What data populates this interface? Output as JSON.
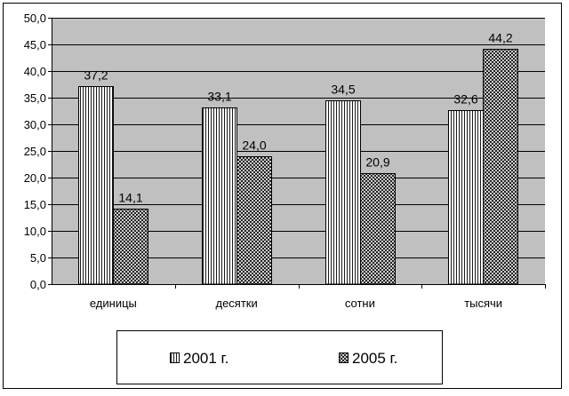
{
  "chart_data": {
    "type": "bar",
    "title": "",
    "xlabel": "",
    "ylabel": "",
    "ylim": [
      0,
      50
    ],
    "yticks": [
      "0,0",
      "5,0",
      "10,0",
      "15,0",
      "20,0",
      "25,0",
      "30,0",
      "35,0",
      "40,0",
      "45,0",
      "50,0"
    ],
    "categories": [
      "единицы",
      "десятки",
      "сотни",
      "тысячи"
    ],
    "series": [
      {
        "name": "2001 г.",
        "values": [
          37.2,
          33.1,
          34.5,
          32.6
        ],
        "labels": [
          "37,2",
          "33,1",
          "34,5",
          "32,6"
        ],
        "pattern": "vertical-stripes"
      },
      {
        "name": "2005 г.",
        "values": [
          14.1,
          24.0,
          20.9,
          44.2
        ],
        "labels": [
          "14,1",
          "24,0",
          "20,9",
          "44,2"
        ],
        "pattern": "crosshatch"
      }
    ],
    "grid": true,
    "legend": "bottom",
    "colors": {
      "plot_background": "#c0c0c0",
      "bar_fill": "#ffffff",
      "bar_stroke": "#000000",
      "gridline": "#000000"
    }
  }
}
